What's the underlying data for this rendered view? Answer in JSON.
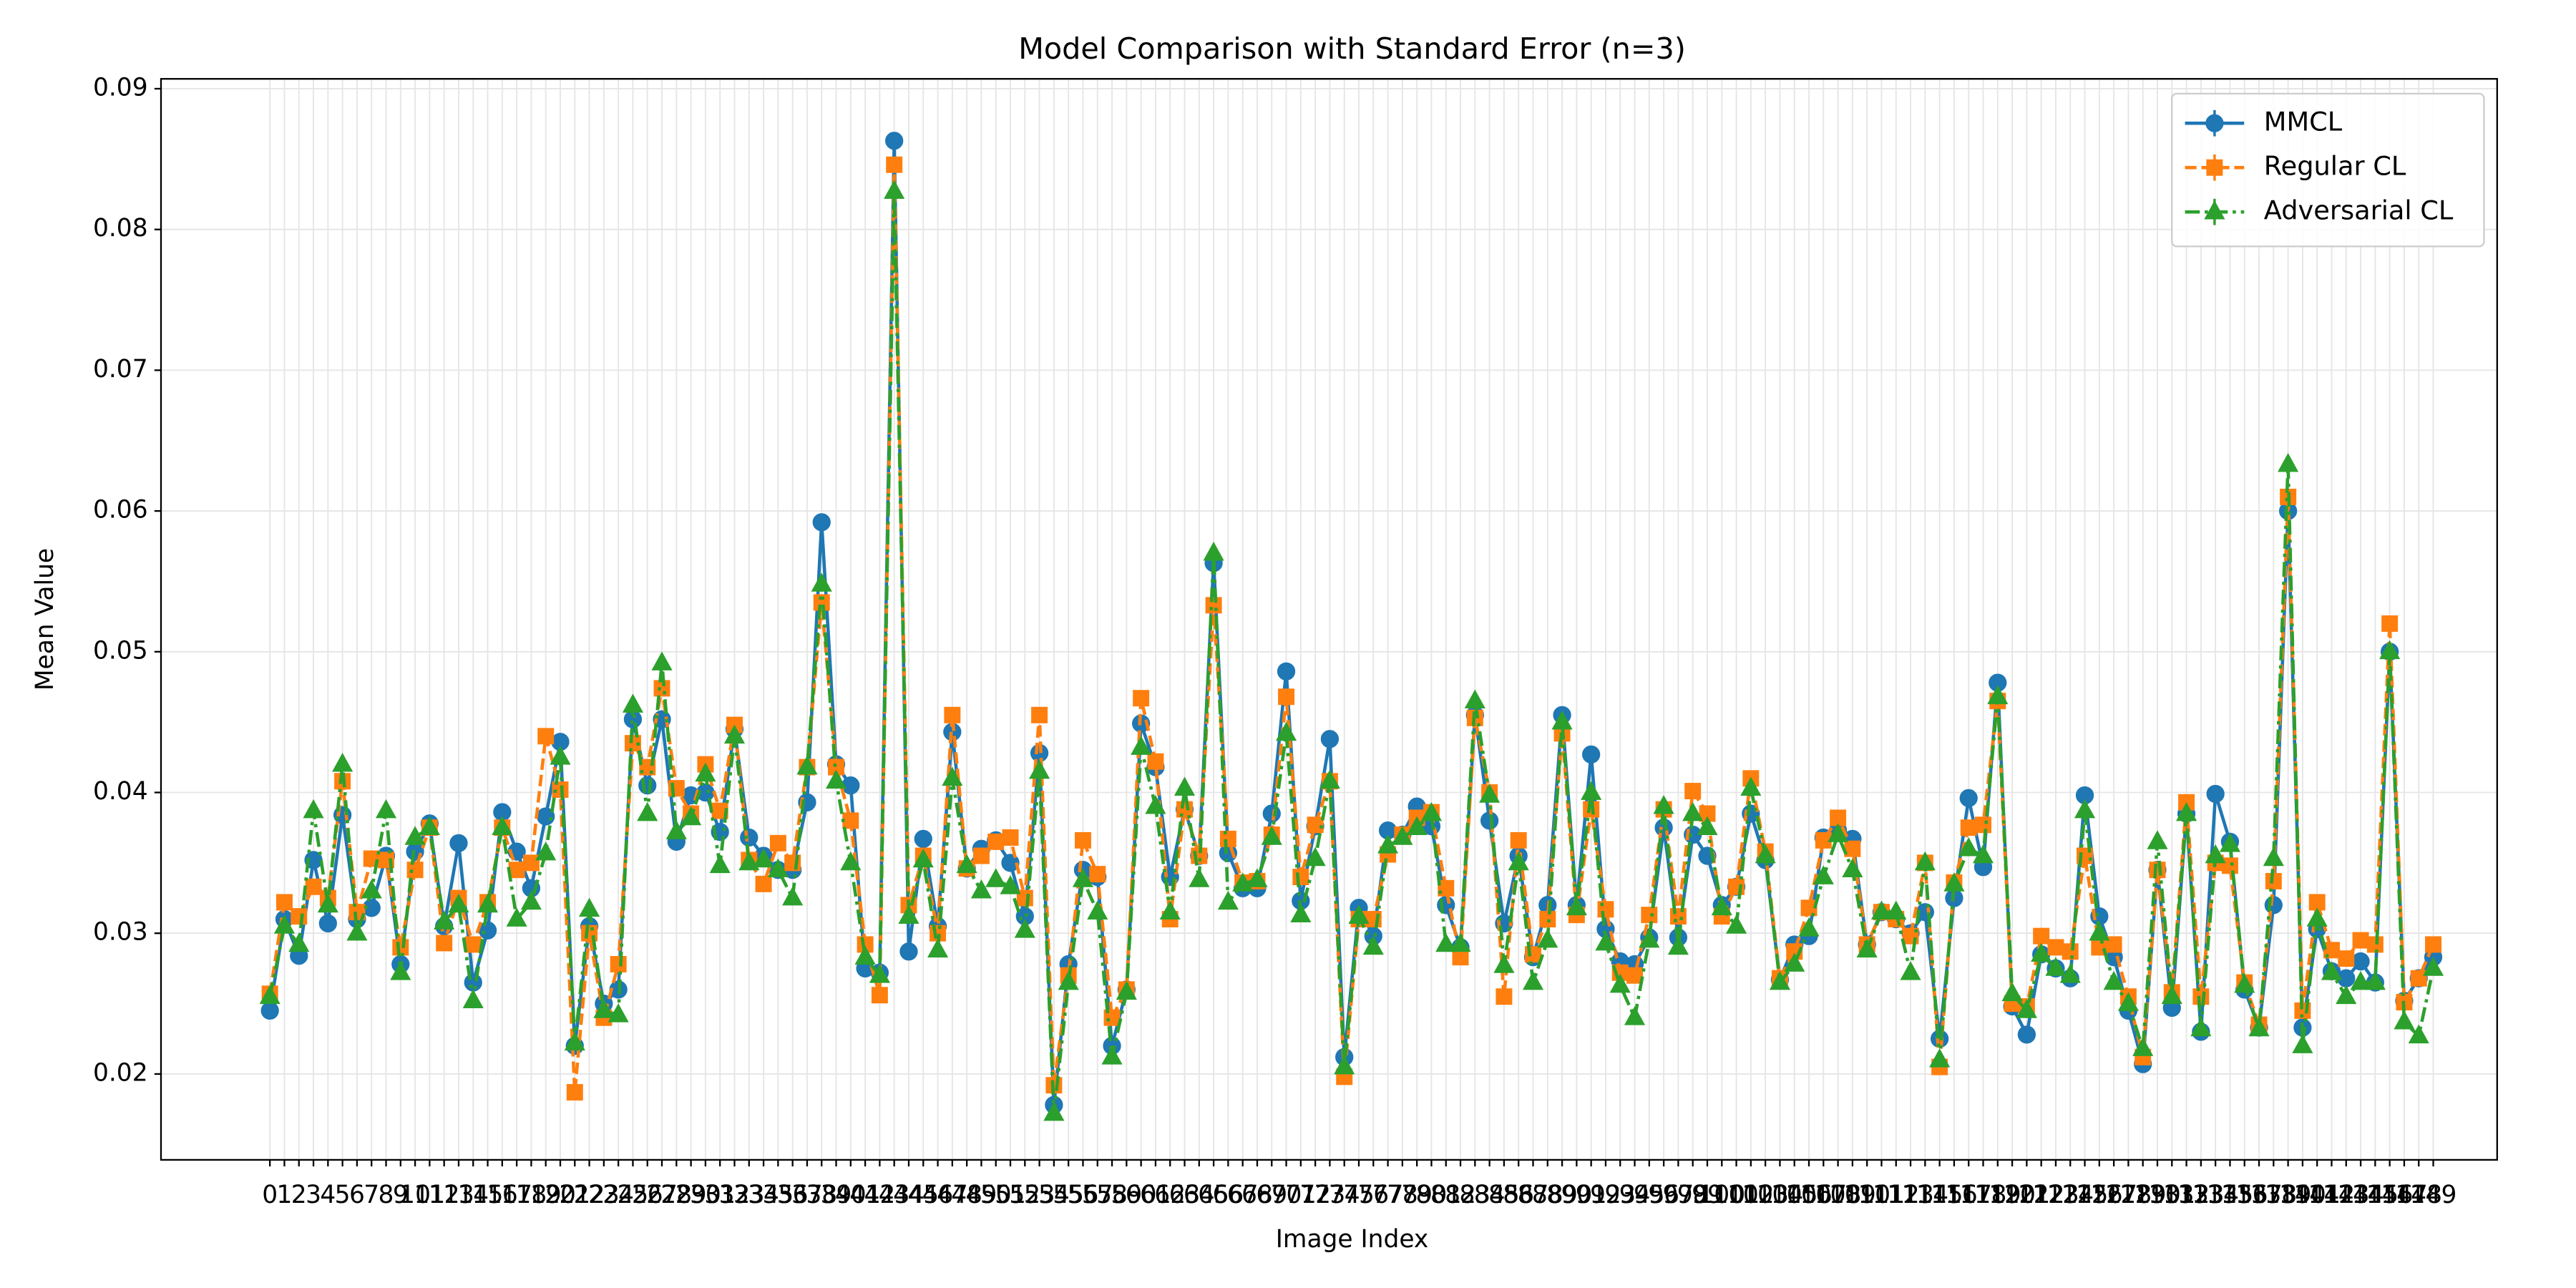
{
  "chart_data": {
    "type": "line",
    "title": "Model Comparison with Standard Error (n=3)",
    "xlabel": "Image Index",
    "ylabel": "Mean Value",
    "x": [
      0,
      1,
      2,
      3,
      4,
      5,
      6,
      7,
      8,
      9,
      10,
      11,
      12,
      13,
      14,
      15,
      16,
      17,
      18,
      19,
      20,
      21,
      22,
      23,
      24,
      25,
      26,
      27,
      28,
      29,
      30,
      31,
      32,
      33,
      34,
      35,
      36,
      37,
      38,
      39,
      40,
      41,
      42,
      43,
      44,
      45,
      46,
      47,
      48,
      49,
      50,
      51,
      52,
      53,
      54,
      55,
      56,
      57,
      58,
      59,
      60,
      61,
      62,
      63,
      64,
      65,
      66,
      67,
      68,
      69,
      70,
      71,
      72,
      73,
      74,
      75,
      76,
      77,
      78,
      79,
      80,
      81,
      82,
      83,
      84,
      85,
      86,
      87,
      88,
      89,
      90,
      91,
      92,
      93,
      94,
      95,
      96,
      97,
      98,
      99,
      100,
      101,
      102,
      103,
      104,
      105,
      106,
      107,
      108,
      109,
      110,
      111,
      112,
      113,
      114,
      115,
      116,
      117,
      118,
      119,
      120,
      121,
      122,
      123,
      124,
      125,
      126,
      127,
      128,
      129,
      130,
      131,
      132,
      133,
      134,
      135,
      136,
      137,
      138,
      139,
      140,
      141,
      142,
      143,
      144,
      145,
      146,
      147,
      148,
      149
    ],
    "xticks": [
      0,
      1,
      2,
      3,
      4,
      5,
      6,
      7,
      8,
      9,
      10,
      11,
      12,
      13,
      14,
      15,
      16,
      17,
      18,
      19,
      20,
      21,
      22,
      23,
      24,
      25,
      26,
      27,
      28,
      29,
      30,
      31,
      32,
      33,
      34,
      35,
      36,
      37,
      38,
      39,
      40,
      41,
      42,
      43,
      44,
      45,
      46,
      47,
      48,
      49,
      50,
      51,
      52,
      53,
      54,
      55,
      56,
      57,
      58,
      59,
      60,
      61,
      62,
      63,
      64,
      65,
      66,
      67,
      68,
      69,
      70,
      71,
      72,
      73,
      74,
      75,
      76,
      77,
      78,
      79,
      80,
      81,
      82,
      83,
      84,
      85,
      86,
      87,
      88,
      89,
      90,
      91,
      92,
      93,
      94,
      95,
      96,
      97,
      98,
      99,
      100,
      101,
      102,
      103,
      104,
      105,
      106,
      107,
      108,
      109,
      110,
      111,
      112,
      113,
      114,
      115,
      116,
      117,
      118,
      119,
      120,
      121,
      122,
      123,
      124,
      125,
      126,
      127,
      128,
      129,
      130,
      131,
      132,
      133,
      134,
      135,
      136,
      137,
      138,
      139,
      140,
      141,
      142,
      143,
      144,
      145,
      146,
      147,
      148,
      149
    ],
    "xlim": [
      -7.5,
      153.4
    ],
    "ylim": [
      0.0139,
      0.0907
    ],
    "yticks": [
      0.02,
      0.03,
      0.04,
      0.05,
      0.06,
      0.07,
      0.08,
      0.09
    ],
    "grid": true,
    "legend": "upper right",
    "series": [
      {
        "name": "MMCL",
        "color": "#1f77b4",
        "marker": "circle",
        "dash": "solid",
        "values": [
          0.0245,
          0.031,
          0.0284,
          0.0352,
          0.0307,
          0.0384,
          0.031,
          0.0318,
          0.0355,
          0.0278,
          0.0358,
          0.0378,
          0.0305,
          0.0364,
          0.0265,
          0.0302,
          0.0386,
          0.0358,
          0.0332,
          0.0383,
          0.0436,
          0.022,
          0.0305,
          0.025,
          0.026,
          0.0452,
          0.0405,
          0.0452,
          0.0365,
          0.0398,
          0.04,
          0.0372,
          0.0445,
          0.0368,
          0.0355,
          0.0345,
          0.0345,
          0.0393,
          0.0592,
          0.042,
          0.0405,
          0.0275,
          0.0272,
          0.0863,
          0.0287,
          0.0367,
          0.0305,
          0.0443,
          0.0346,
          0.036,
          0.0366,
          0.035,
          0.0312,
          0.0428,
          0.0178,
          0.0278,
          0.0345,
          0.034,
          0.022,
          0.026,
          0.0449,
          0.0418,
          0.034,
          0.0388,
          0.0355,
          0.0563,
          0.0357,
          0.0332,
          0.0332,
          0.0385,
          0.0486,
          0.0323,
          0.0376,
          0.0438,
          0.0212,
          0.0318,
          0.0298,
          0.0373,
          0.037,
          0.039,
          0.0376,
          0.032,
          0.029,
          0.0455,
          0.038,
          0.0307,
          0.0355,
          0.0283,
          0.032,
          0.0455,
          0.032,
          0.0427,
          0.0303,
          0.028,
          0.0278,
          0.0297,
          0.0375,
          0.0297,
          0.037,
          0.0355,
          0.032,
          0.0333,
          0.0385,
          0.0352,
          0.0267,
          0.0292,
          0.0298,
          0.0368,
          0.0373,
          0.0367,
          0.0292,
          0.0315,
          0.031,
          0.03,
          0.0315,
          0.0225,
          0.0325,
          0.0396,
          0.0347,
          0.0478,
          0.0248,
          0.0228,
          0.0285,
          0.0275,
          0.0268,
          0.0398,
          0.0312,
          0.0283,
          0.0245,
          0.0207,
          0.0345,
          0.0247,
          0.0385,
          0.023,
          0.0399,
          0.0365,
          0.026,
          0.0233,
          0.032,
          0.06,
          0.0233,
          0.0303,
          0.0273,
          0.0268,
          0.028,
          0.0265,
          0.05,
          0.0252,
          0.0268,
          0.0283
        ]
      },
      {
        "name": "Regular CL",
        "color": "#ff7f0e",
        "marker": "square",
        "dash": "dashed",
        "values": [
          0.0257,
          0.0322,
          0.0312,
          0.0333,
          0.0325,
          0.0408,
          0.0315,
          0.0353,
          0.0352,
          0.029,
          0.0345,
          0.0375,
          0.0293,
          0.0325,
          0.0292,
          0.0322,
          0.0375,
          0.0345,
          0.035,
          0.044,
          0.0402,
          0.0187,
          0.03,
          0.024,
          0.0278,
          0.0435,
          0.0418,
          0.0474,
          0.0403,
          0.0385,
          0.042,
          0.0387,
          0.0448,
          0.0352,
          0.0335,
          0.0364,
          0.035,
          0.0418,
          0.0535,
          0.0418,
          0.038,
          0.0292,
          0.0256,
          0.0846,
          0.032,
          0.0355,
          0.03,
          0.0455,
          0.0346,
          0.0355,
          0.0365,
          0.0368,
          0.0325,
          0.0455,
          0.0192,
          0.027,
          0.0366,
          0.0342,
          0.024,
          0.026,
          0.0467,
          0.0422,
          0.031,
          0.0388,
          0.0355,
          0.0533,
          0.0367,
          0.0336,
          0.0337,
          0.037,
          0.0468,
          0.034,
          0.0377,
          0.0408,
          0.0198,
          0.031,
          0.031,
          0.0356,
          0.037,
          0.0382,
          0.0386,
          0.0332,
          0.0283,
          0.0453,
          0.04,
          0.0255,
          0.0366,
          0.0285,
          0.031,
          0.0442,
          0.0313,
          0.0388,
          0.0317,
          0.0272,
          0.027,
          0.0313,
          0.0388,
          0.0312,
          0.0401,
          0.0385,
          0.0312,
          0.0333,
          0.041,
          0.0358,
          0.0268,
          0.0287,
          0.0318,
          0.0366,
          0.0382,
          0.036,
          0.0292,
          0.0315,
          0.031,
          0.0298,
          0.035,
          0.0205,
          0.0336,
          0.0375,
          0.0377,
          0.0465,
          0.025,
          0.0248,
          0.0298,
          0.029,
          0.0287,
          0.0355,
          0.029,
          0.0292,
          0.0255,
          0.0212,
          0.0345,
          0.0258,
          0.0393,
          0.0255,
          0.035,
          0.0348,
          0.0265,
          0.0235,
          0.0337,
          0.061,
          0.0245,
          0.0322,
          0.0288,
          0.0282,
          0.0295,
          0.0292,
          0.052,
          0.0251,
          0.0268,
          0.0292
        ]
      },
      {
        "name": "Adversarial CL",
        "color": "#2ca02c",
        "marker": "triangle",
        "dash": "dashdot",
        "values": [
          0.0255,
          0.0305,
          0.0292,
          0.0387,
          0.032,
          0.042,
          0.03,
          0.033,
          0.0387,
          0.0272,
          0.0368,
          0.0375,
          0.0308,
          0.032,
          0.0252,
          0.032,
          0.0375,
          0.031,
          0.0322,
          0.0357,
          0.0425,
          0.0222,
          0.0317,
          0.0245,
          0.0242,
          0.0462,
          0.0385,
          0.0492,
          0.0372,
          0.0382,
          0.0413,
          0.0348,
          0.044,
          0.035,
          0.0352,
          0.0345,
          0.0325,
          0.0418,
          0.0548,
          0.0408,
          0.035,
          0.0283,
          0.027,
          0.0827,
          0.0312,
          0.0352,
          0.0288,
          0.041,
          0.0348,
          0.033,
          0.0338,
          0.0333,
          0.0302,
          0.0415,
          0.0172,
          0.0265,
          0.0338,
          0.0315,
          0.0212,
          0.0258,
          0.0432,
          0.039,
          0.0315,
          0.0403,
          0.0338,
          0.057,
          0.0322,
          0.0335,
          0.0338,
          0.0368,
          0.0442,
          0.0313,
          0.0353,
          0.0408,
          0.0205,
          0.0312,
          0.029,
          0.0362,
          0.0368,
          0.0375,
          0.0385,
          0.0292,
          0.0292,
          0.0465,
          0.0398,
          0.0277,
          0.035,
          0.0265,
          0.0295,
          0.045,
          0.0318,
          0.04,
          0.0293,
          0.0263,
          0.024,
          0.0295,
          0.039,
          0.029,
          0.0385,
          0.0375,
          0.0318,
          0.0305,
          0.0403,
          0.0355,
          0.0265,
          0.0278,
          0.0303,
          0.034,
          0.037,
          0.0345,
          0.0288,
          0.0315,
          0.0315,
          0.0272,
          0.035,
          0.021,
          0.0335,
          0.036,
          0.0355,
          0.0468,
          0.0257,
          0.0245,
          0.0285,
          0.0275,
          0.027,
          0.0387,
          0.03,
          0.0265,
          0.025,
          0.0218,
          0.0365,
          0.0255,
          0.0385,
          0.0232,
          0.0355,
          0.0363,
          0.0263,
          0.0232,
          0.0353,
          0.0633,
          0.022,
          0.031,
          0.0272,
          0.0255,
          0.0265,
          0.0265,
          0.05,
          0.0237,
          0.0227,
          0.0275
        ]
      }
    ]
  }
}
